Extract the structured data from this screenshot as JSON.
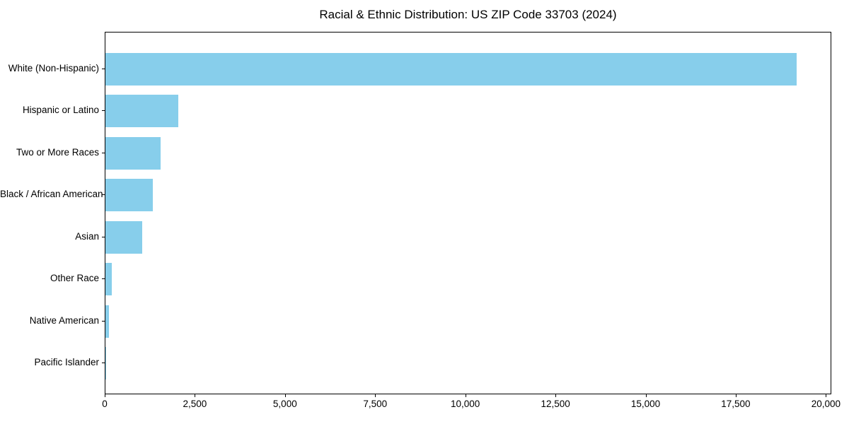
{
  "chart_data": {
    "type": "bar",
    "orientation": "horizontal",
    "title": "Racial & Ethnic Distribution: US ZIP Code 33703 (2024)",
    "categories": [
      "White (Non-Hispanic)",
      "Hispanic or Latino",
      "Two or More Races",
      "Black / African American",
      "Asian",
      "Other Race",
      "Native American",
      "Pacific Islander"
    ],
    "values": [
      19200,
      2030,
      1540,
      1310,
      1020,
      180,
      90,
      10
    ],
    "xlabel": "",
    "ylabel": "",
    "xlim": [
      0,
      20150
    ],
    "xticks": [
      {
        "value": 0,
        "label": "0"
      },
      {
        "value": 2500,
        "label": "2,500"
      },
      {
        "value": 5000,
        "label": "5,000"
      },
      {
        "value": 7500,
        "label": "7,500"
      },
      {
        "value": 10000,
        "label": "10,000"
      },
      {
        "value": 12500,
        "label": "12,500"
      },
      {
        "value": 15000,
        "label": "15,000"
      },
      {
        "value": 17500,
        "label": "17,500"
      },
      {
        "value": 20000,
        "label": "20,000"
      }
    ],
    "grid": false,
    "legend": null,
    "bar_color": "#87CEEB",
    "background_color": "#FFFFFF",
    "axis_color": "#000000",
    "text_color": "#000000"
  }
}
